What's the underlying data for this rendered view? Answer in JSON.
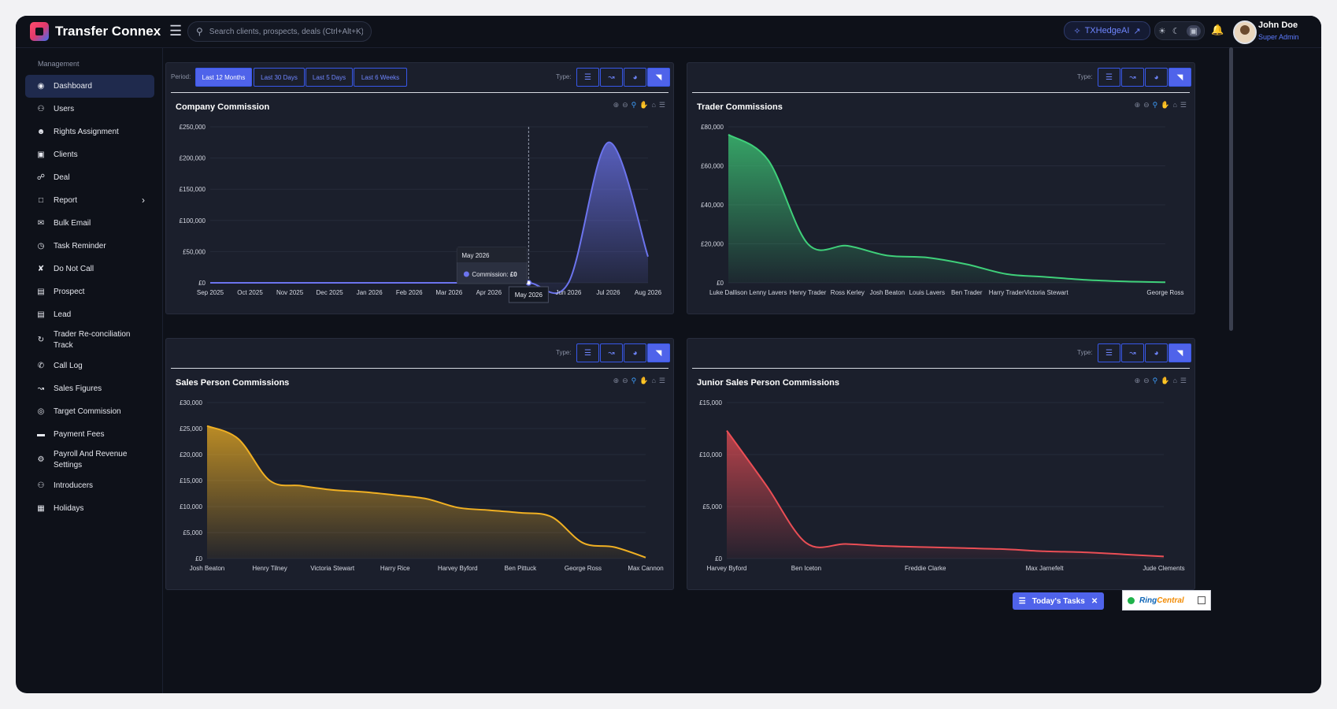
{
  "app": {
    "name": "Transfer Connex"
  },
  "topbar": {
    "search_placeholder": "Search clients, prospects, deals (Ctrl+Alt+K)",
    "hedge_label": "TXHedgeAI",
    "user_name": "John Doe",
    "user_role": "Super Admin"
  },
  "sidebar": {
    "section": "Management",
    "items": [
      {
        "label": "Dashboard",
        "icon": "dashboard-icon"
      },
      {
        "label": "Users",
        "icon": "users-icon"
      },
      {
        "label": "Rights Assignment",
        "icon": "user-lock-icon"
      },
      {
        "label": "Clients",
        "icon": "briefcase-icon"
      },
      {
        "label": "Deal",
        "icon": "handshake-icon"
      },
      {
        "label": "Report",
        "icon": "file-icon"
      },
      {
        "label": "Bulk Email",
        "icon": "mail-bulk-icon"
      },
      {
        "label": "Task Reminder",
        "icon": "clock-icon"
      },
      {
        "label": "Do Not Call",
        "icon": "phone-slash-icon"
      },
      {
        "label": "Prospect",
        "icon": "id-card-icon"
      },
      {
        "label": "Lead",
        "icon": "address-card-icon"
      },
      {
        "label": "Trader Re-conciliation Track",
        "icon": "sync-icon"
      },
      {
        "label": "Call Log",
        "icon": "phone-icon"
      },
      {
        "label": "Sales Figures",
        "icon": "line-chart-icon"
      },
      {
        "label": "Target Commission",
        "icon": "target-icon"
      },
      {
        "label": "Payment Fees",
        "icon": "credit-card-icon"
      },
      {
        "label": "Payroll And Revenue Settings",
        "icon": "cogs-icon"
      },
      {
        "label": "Introducers",
        "icon": "user-friends-icon"
      },
      {
        "label": "Holidays",
        "icon": "calendar-icon"
      }
    ]
  },
  "controls": {
    "period_label": "Period:",
    "periods": [
      "Last 12 Months",
      "Last 30 Days",
      "Last 5 Days",
      "Last 6 Weeks"
    ],
    "type_label": "Type:"
  },
  "colors": {
    "company": "#6c74ee",
    "trader": "#3fd07a",
    "sales": "#f0b023",
    "junior": "#ea4e55"
  },
  "tooltip": {
    "title": "May 2026",
    "label": "Commission:",
    "value": "£0"
  },
  "floating": {
    "tasks_label": "Today's Tasks",
    "ringcentral_a": "Ring",
    "ringcentral_b": "Central"
  },
  "chart_data": [
    {
      "type": "area",
      "title": "Company Commission",
      "categories": [
        "Sep 2025",
        "Oct 2025",
        "Nov 2025",
        "Dec 2025",
        "Jan 2026",
        "Feb 2026",
        "Mar 2026",
        "Apr 2026",
        "May 2026",
        "Jun 2026",
        "Jul 2026",
        "Aug 2026"
      ],
      "values": [
        0,
        0,
        0,
        0,
        0,
        0,
        0,
        0,
        0,
        0,
        225000,
        42000
      ],
      "yticks": [
        "£0",
        "£50,000",
        "£100,000",
        "£150,000",
        "£200,000",
        "£250,000"
      ],
      "ylim": [
        0,
        250000
      ]
    },
    {
      "type": "area",
      "title": "Trader Commissions",
      "categories": [
        "Luke Dallison",
        "Lenny Lavers",
        "Henry Trader",
        "Ross Kerley",
        "Josh Beaton",
        "Louis Lavers",
        "Ben Trader",
        "Harry Trader",
        "Victoria Stewart",
        "",
        "",
        "George Ross"
      ],
      "values": [
        76000,
        63000,
        20000,
        19000,
        14000,
        13000,
        9500,
        4500,
        3000,
        1500,
        700,
        300
      ],
      "yticks": [
        "£0",
        "£20,000",
        "£40,000",
        "£60,000",
        "£80,000"
      ],
      "ylim": [
        0,
        80000
      ]
    },
    {
      "type": "area",
      "title": "Sales Person Commissions",
      "categories": [
        "Josh Beaton",
        "",
        "Henry Tilney",
        "",
        "Victoria Stewart",
        "",
        "Harry Rice",
        "",
        "Harvey Byford",
        "",
        "Ben Pittuck",
        "",
        "George Ross",
        "",
        "Max Cannon"
      ],
      "values": [
        25500,
        23000,
        15000,
        14000,
        13200,
        12800,
        12200,
        11500,
        9800,
        9300,
        8800,
        8000,
        3000,
        2200,
        200
      ],
      "yticks": [
        "£0",
        "£5,000",
        "£10,000",
        "£15,000",
        "£20,000",
        "£25,000",
        "£30,000"
      ],
      "ylim": [
        0,
        30000
      ]
    },
    {
      "type": "area",
      "title": "Junior Sales Person Commissions",
      "categories": [
        "Harvey Byford",
        "",
        "Ben Iceton",
        "",
        "",
        "Freddie Clarke",
        "",
        "",
        "Max Jarnefelt",
        "",
        "",
        "Jude Clements"
      ],
      "values": [
        12300,
        7000,
        1500,
        1400,
        1200,
        1100,
        1000,
        900,
        700,
        600,
        400,
        200
      ],
      "yticks": [
        "£0",
        "£5,000",
        "£10,000",
        "£15,000"
      ],
      "ylim": [
        0,
        15000
      ]
    }
  ]
}
